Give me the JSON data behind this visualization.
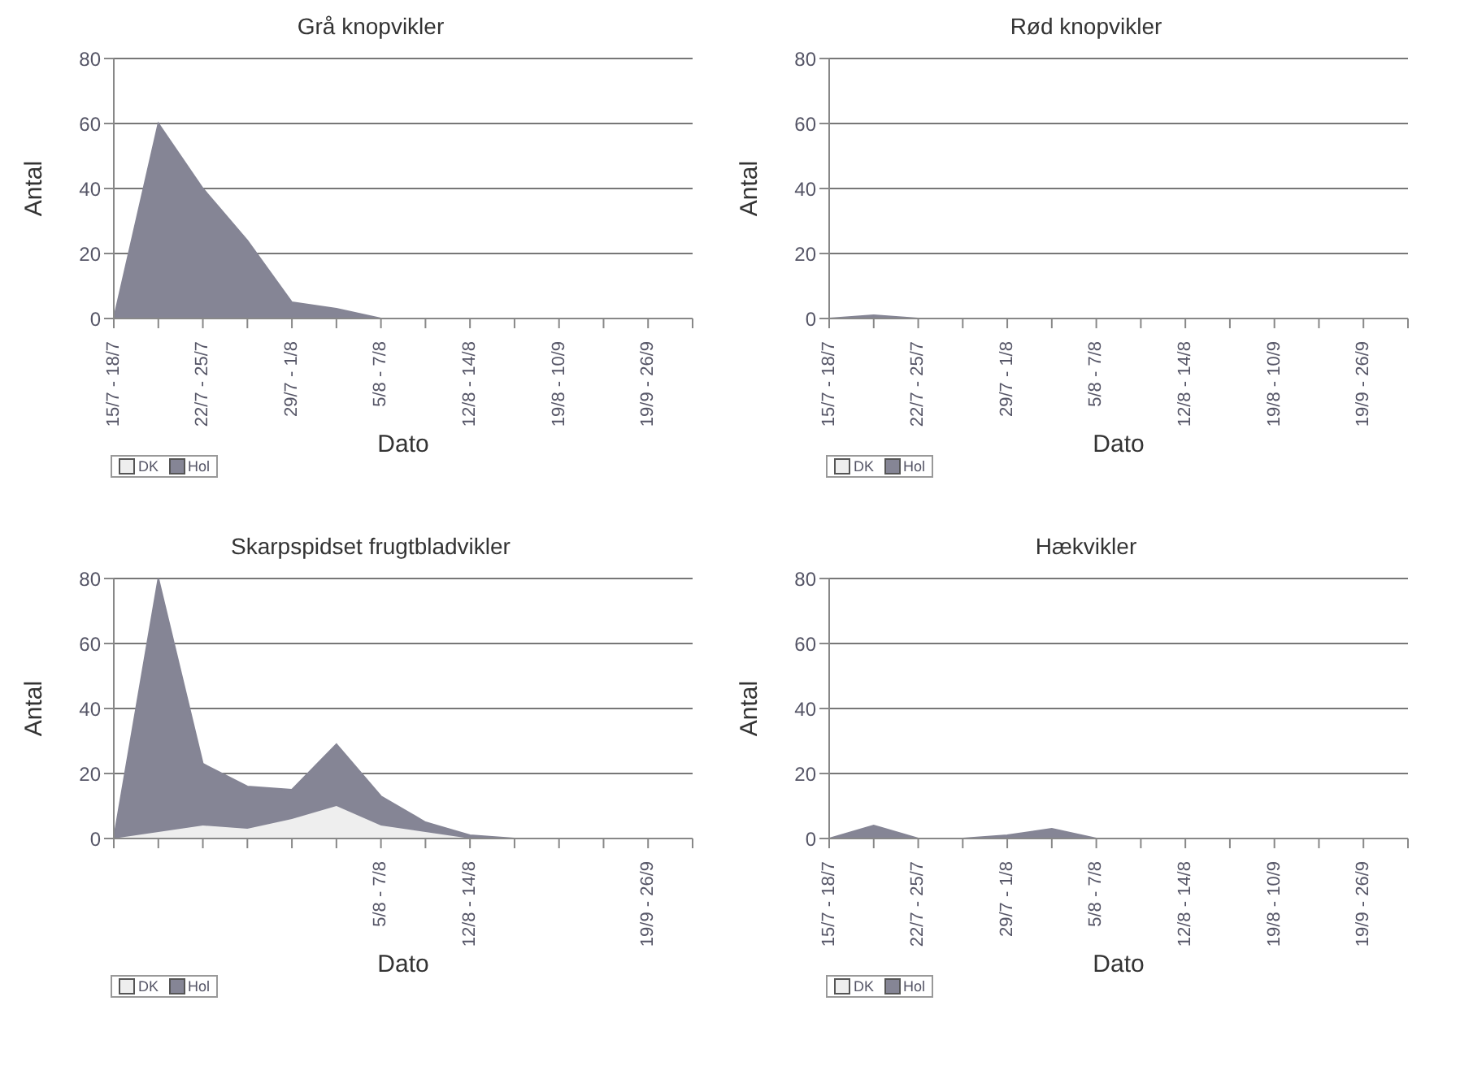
{
  "chart_data": [
    {
      "type": "area",
      "title": "Grå knopvikler",
      "xlabel": "Dato",
      "ylabel": "Antal",
      "categories": [
        "15/7 - 18/7",
        null,
        "22/7 - 25/7",
        null,
        "29/7 - 1/8",
        null,
        "5/8 - 7/8",
        null,
        "12/8 - 14/8",
        null,
        "19/8 - 10/9",
        null,
        "19/9 - 26/9",
        null
      ],
      "ylim": [
        0,
        80
      ],
      "yticks": [
        0,
        20,
        40,
        60,
        80
      ],
      "grid": "y",
      "legend": "bottom left",
      "series": [
        {
          "name": "DK",
          "color": "#eeeeee",
          "values": [
            null,
            null,
            null,
            null,
            null,
            null,
            null,
            null,
            null,
            null,
            null,
            null,
            null,
            null
          ]
        },
        {
          "name": "Hol",
          "color": "#858595",
          "values": [
            0,
            60,
            40,
            24,
            5,
            3,
            0,
            0,
            0,
            0,
            0,
            0,
            0,
            0
          ]
        }
      ]
    },
    {
      "type": "area",
      "title": "Rød knopvikler",
      "xlabel": "Dato",
      "ylabel": "Antal",
      "categories": [
        "15/7 - 18/7",
        null,
        "22/7 - 25/7",
        null,
        "29/7 - 1/8",
        null,
        "5/8 - 7/8",
        null,
        "12/8 - 14/8",
        null,
        "19/8 - 10/9",
        null,
        "19/9 - 26/9",
        null
      ],
      "ylim": [
        0,
        80
      ],
      "yticks": [
        0,
        20,
        40,
        60,
        80
      ],
      "grid": "y",
      "legend": "bottom left",
      "series": [
        {
          "name": "DK",
          "color": "#eeeeee",
          "values": [
            null,
            null,
            null,
            null,
            null,
            null,
            null,
            null,
            null,
            null,
            null,
            null,
            null,
            null
          ]
        },
        {
          "name": "Hol",
          "color": "#858595",
          "values": [
            0,
            1,
            0,
            0,
            0,
            0,
            0,
            0,
            0,
            0,
            0,
            0,
            0,
            0
          ]
        }
      ]
    },
    {
      "type": "area",
      "title": "Skarpspidset frugtbladvikler",
      "xlabel": "Dato",
      "ylabel": "Antal",
      "categories": [
        null,
        null,
        null,
        null,
        null,
        null,
        "5/8 - 7/8",
        null,
        "12/8 - 14/8",
        null,
        null,
        null,
        "19/9 - 26/9",
        null
      ],
      "stacked": true,
      "ylim": [
        0,
        80
      ],
      "yticks": [
        0,
        20,
        40,
        60,
        80
      ],
      "grid": "y",
      "legend": "bottom left",
      "series": [
        {
          "name": "DK",
          "color": "#eeeeee",
          "values": [
            0,
            2,
            4,
            3,
            6,
            10,
            4,
            2,
            0,
            0,
            0,
            0,
            0,
            0
          ]
        },
        {
          "name": "Hol",
          "color": "#858595",
          "values": [
            0,
            78,
            19,
            13,
            9,
            19,
            9,
            3,
            1,
            0,
            0,
            0,
            0,
            0
          ]
        }
      ]
    },
    {
      "type": "area",
      "title": "Hækvikler",
      "xlabel": "Dato",
      "ylabel": "Antal",
      "categories": [
        "15/7 - 18/7",
        null,
        "22/7 - 25/7",
        null,
        "29/7 - 1/8",
        null,
        "5/8 - 7/8",
        null,
        "12/8 - 14/8",
        null,
        "19/8 - 10/9",
        null,
        "19/9 - 26/9",
        null
      ],
      "ylim": [
        0,
        80
      ],
      "yticks": [
        0,
        20,
        40,
        60,
        80
      ],
      "grid": "y",
      "legend": "bottom left",
      "series": [
        {
          "name": "DK",
          "color": "#eeeeee",
          "values": [
            null,
            null,
            null,
            null,
            null,
            null,
            null,
            null,
            null,
            null,
            null,
            null,
            null,
            null
          ]
        },
        {
          "name": "Hol",
          "color": "#858595",
          "values": [
            0,
            4,
            0,
            0,
            1,
            3,
            0,
            0,
            0,
            0,
            0,
            0,
            0,
            0
          ]
        }
      ]
    }
  ]
}
